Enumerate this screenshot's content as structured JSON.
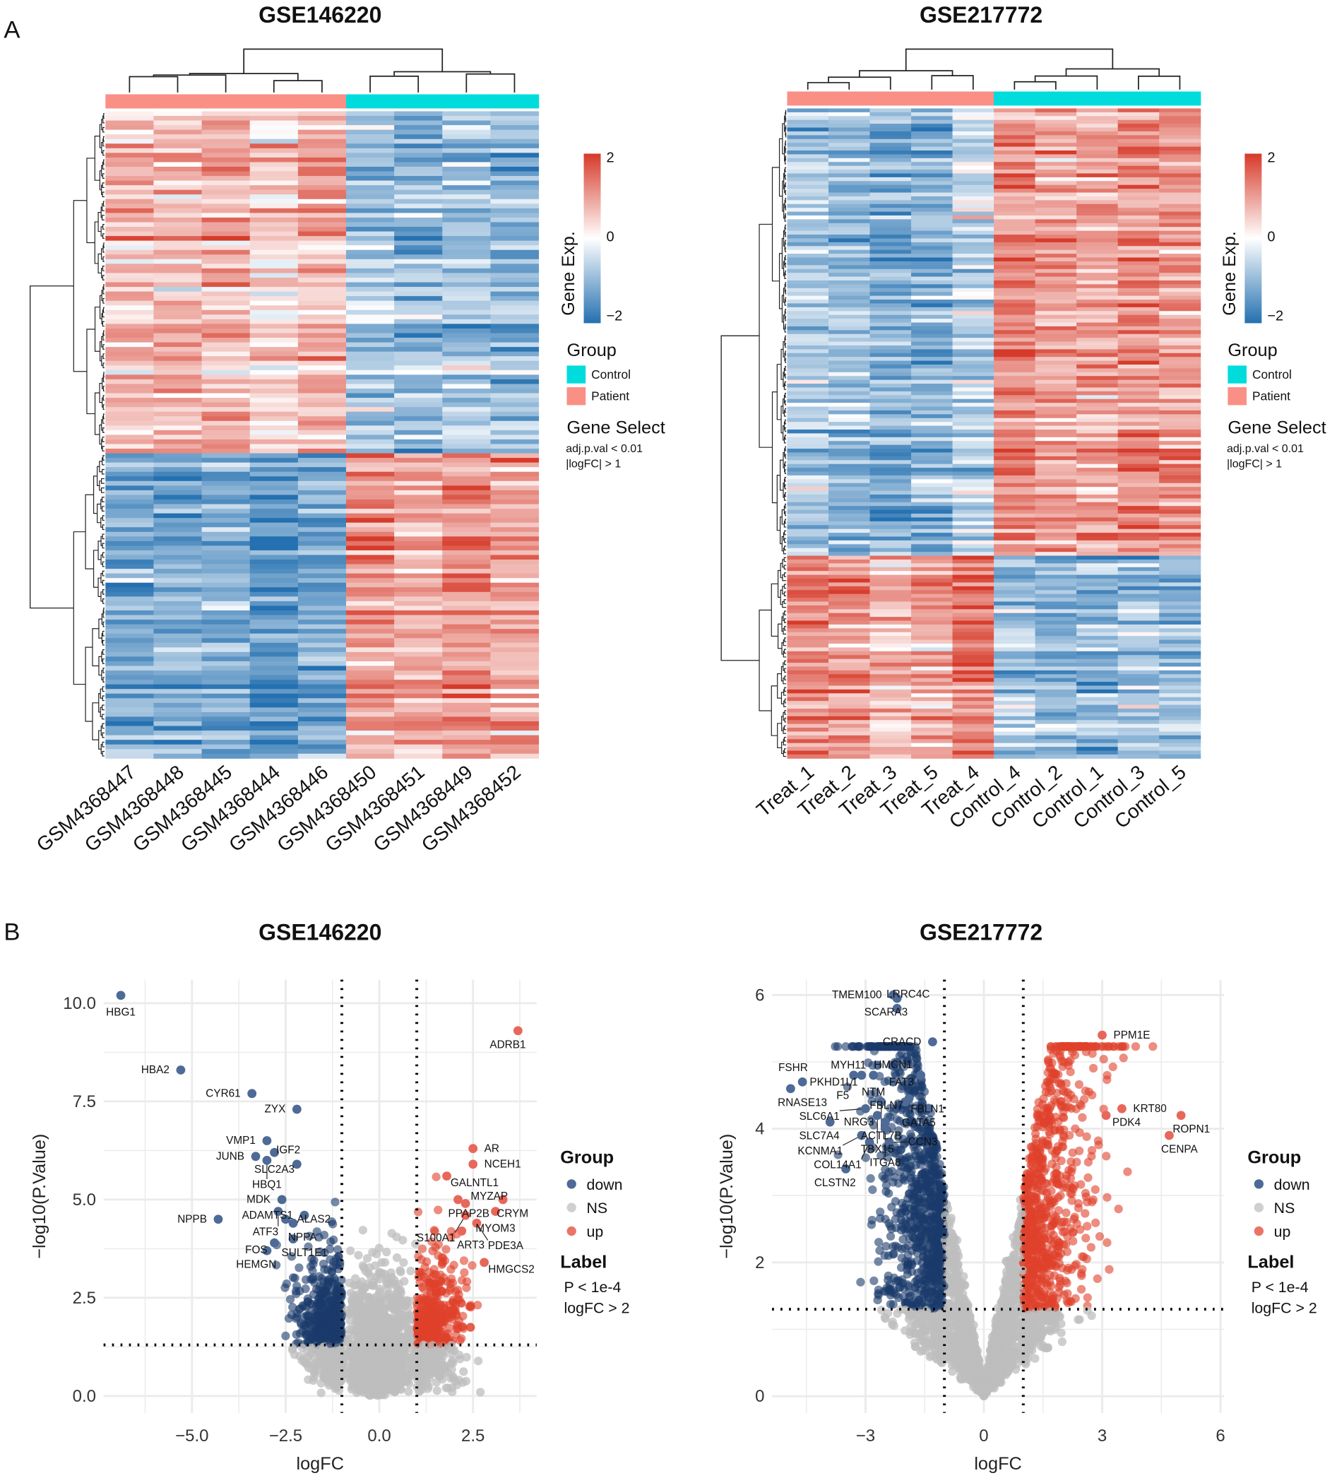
{
  "panel_labels": [
    "A",
    "B"
  ],
  "chart_data": [
    {
      "type": "heatmap",
      "title": "GSE146220",
      "columns": [
        "GSM4368447",
        "GSM4368448",
        "GSM4368445",
        "GSM4368444",
        "GSM4368446",
        "GSM4368450",
        "GSM4368451",
        "GSM4368449",
        "GSM4368452"
      ],
      "column_groups": [
        "Patient",
        "Patient",
        "Patient",
        "Patient",
        "Patient",
        "Control",
        "Control",
        "Control",
        "Control"
      ],
      "row_clusters": [
        {
          "pattern": "high in Patient, low in Control",
          "share": 0.53
        },
        {
          "pattern": "low in Patient, high in Control",
          "share": 0.47
        }
      ],
      "colorbar": {
        "label": "Gene Exp.",
        "ticks": [
          "2",
          "0",
          "−2"
        ],
        "range": [
          -2,
          2
        ],
        "low": "#2470b0",
        "mid": "#ffffff",
        "high": "#d63a2a"
      },
      "legend_group": {
        "title": "Group",
        "items": [
          {
            "label": "Control",
            "color": "#00dcdc"
          },
          {
            "label": "Patient",
            "color": "#fa8f86"
          }
        ]
      },
      "gene_select": {
        "title": "Gene Select",
        "lines": [
          "adj.p.val < 0.01",
          "|logFC| > 1"
        ]
      }
    },
    {
      "type": "heatmap",
      "title": "GSE217772",
      "columns": [
        "Treat_1",
        "Treat_2",
        "Treat_3",
        "Treat_5",
        "Treat_4",
        "Control_4",
        "Control_2",
        "Control_1",
        "Control_3",
        "Control_5"
      ],
      "column_groups": [
        "Patient",
        "Patient",
        "Patient",
        "Patient",
        "Patient",
        "Control",
        "Control",
        "Control",
        "Control",
        "Control"
      ],
      "row_clusters": [
        {
          "pattern": "low in Patient, high in Control",
          "share": 0.69
        },
        {
          "pattern": "high in Patient, low in Control",
          "share": 0.31
        }
      ],
      "colorbar": {
        "label": "Gene Exp.",
        "ticks": [
          "2",
          "0",
          "−2"
        ],
        "range": [
          -2,
          2
        ],
        "low": "#2470b0",
        "mid": "#ffffff",
        "high": "#d63a2a"
      },
      "legend_group": {
        "title": "Group",
        "items": [
          {
            "label": "Control",
            "color": "#00dcdc"
          },
          {
            "label": "Patient",
            "color": "#fa8f86"
          }
        ]
      },
      "gene_select": {
        "title": "Gene Select",
        "lines": [
          "adj.p.val < 0.01",
          "|logFC| > 1"
        ]
      }
    },
    {
      "type": "scatter",
      "title": "GSE146220",
      "xlabel": "logFC",
      "ylabel": "−log10(P.Value)",
      "xlim": [
        -7.36,
        4.2
      ],
      "ylim": [
        -0.43,
        10.6
      ],
      "xticks": [
        {
          "v": -5,
          "label": "−5.0"
        },
        {
          "v": -2.5,
          "label": "−2.5"
        },
        {
          "v": 0,
          "label": "0.0"
        },
        {
          "v": 2.5,
          "label": "2.5"
        }
      ],
      "yticks": [
        {
          "v": 0,
          "label": "0.0"
        },
        {
          "v": 2.5,
          "label": "2.5"
        },
        {
          "v": 5,
          "label": "5.0"
        },
        {
          "v": 7.5,
          "label": "7.5"
        },
        {
          "v": 10,
          "label": "10.0"
        }
      ],
      "grid": true,
      "thresholds": {
        "logFC": [
          -1,
          1
        ],
        "neg_log10_p": 1.3
      },
      "colors": {
        "down": "#1b3a6b",
        "NS": "#bebebe",
        "up": "#e0412c"
      },
      "labeled_points": [
        {
          "gene": "HBG1",
          "x": -6.9,
          "y": 10.2,
          "group": "down"
        },
        {
          "gene": "HBA2",
          "x": -5.3,
          "y": 8.3,
          "group": "down"
        },
        {
          "gene": "CYR61",
          "x": -3.4,
          "y": 7.7,
          "group": "down"
        },
        {
          "gene": "ZYX",
          "x": -2.2,
          "y": 7.3,
          "group": "down"
        },
        {
          "gene": "VMP1",
          "x": -3.0,
          "y": 6.5,
          "group": "down"
        },
        {
          "gene": "JUNB",
          "x": -3.3,
          "y": 6.1,
          "group": "down"
        },
        {
          "gene": "SLC2A3",
          "x": -2.8,
          "y": 6.2,
          "group": "down"
        },
        {
          "gene": "IGF2",
          "x": -2.2,
          "y": 5.9,
          "group": "down"
        },
        {
          "gene": "HBQ1",
          "x": -3.0,
          "y": 6.0,
          "group": "down"
        },
        {
          "gene": "ADAMTS1",
          "x": -2.0,
          "y": 4.6,
          "group": "down"
        },
        {
          "gene": "MDK",
          "x": -2.6,
          "y": 5.0,
          "group": "down"
        },
        {
          "gene": "ATF3",
          "x": -2.7,
          "y": 4.7,
          "group": "down"
        },
        {
          "gene": "ALAS2",
          "x": -2.5,
          "y": 4.5,
          "group": "down"
        },
        {
          "gene": "NPPA",
          "x": -2.3,
          "y": 4.4,
          "group": "down"
        },
        {
          "gene": "NPPB",
          "x": -4.3,
          "y": 4.5,
          "group": "down"
        },
        {
          "gene": "FOS",
          "x": -2.8,
          "y": 3.9,
          "group": "down"
        },
        {
          "gene": "HEMGN",
          "x": -3.0,
          "y": 3.7,
          "group": "down"
        },
        {
          "gene": "SULT1E1",
          "x": -2.3,
          "y": 4.0,
          "group": "down"
        },
        {
          "gene": "ADRB1",
          "x": 3.7,
          "y": 9.3,
          "group": "up"
        },
        {
          "gene": "AR",
          "x": 2.5,
          "y": 6.3,
          "group": "up"
        },
        {
          "gene": "NCEH1",
          "x": 2.5,
          "y": 5.9,
          "group": "up"
        },
        {
          "gene": "GALNTL1",
          "x": 1.8,
          "y": 5.6,
          "group": "up"
        },
        {
          "gene": "CRYM",
          "x": 3.3,
          "y": 5.0,
          "group": "up"
        },
        {
          "gene": "MYZAP",
          "x": 2.3,
          "y": 4.9,
          "group": "up"
        },
        {
          "gene": "PPAP2B",
          "x": 2.1,
          "y": 5.0,
          "group": "up"
        },
        {
          "gene": "MYOM3",
          "x": 3.1,
          "y": 4.7,
          "group": "up"
        },
        {
          "gene": "ART3",
          "x": 2.2,
          "y": 4.2,
          "group": "up"
        },
        {
          "gene": "S100A1",
          "x": 2.3,
          "y": 4.6,
          "group": "up"
        },
        {
          "gene": "PDE3A",
          "x": 2.6,
          "y": 4.4,
          "group": "up"
        },
        {
          "gene": "HMGCS2",
          "x": 2.8,
          "y": 3.4,
          "group": "up"
        }
      ],
      "legend_group": {
        "title": "Group",
        "items": [
          {
            "label": "down",
            "color": "#4e6a96"
          },
          {
            "label": "NS",
            "color": "#cfcfcf"
          },
          {
            "label": "up",
            "color": "#ea7466"
          }
        ]
      },
      "legend_label": {
        "title": "Label",
        "lines": [
          "P < 1e-4",
          "logFC > 2"
        ]
      }
    },
    {
      "type": "scatter",
      "title": "GSE217772",
      "xlabel": "logFC",
      "ylabel": "−log10(P.Value)",
      "xlim": [
        -5.37,
        6.09
      ],
      "ylim": [
        -0.25,
        6.23
      ],
      "xticks": [
        {
          "v": -3,
          "label": "−3"
        },
        {
          "v": 0,
          "label": "0"
        },
        {
          "v": 3,
          "label": "3"
        },
        {
          "v": 6,
          "label": "6"
        }
      ],
      "yticks": [
        {
          "v": 0,
          "label": "0"
        },
        {
          "v": 2,
          "label": "2"
        },
        {
          "v": 4,
          "label": "4"
        },
        {
          "v": 6,
          "label": "6"
        }
      ],
      "grid": true,
      "thresholds": {
        "logFC": [
          -1,
          1
        ],
        "neg_log10_p": 1.3
      },
      "colors": {
        "down": "#1b3a6b",
        "NS": "#bebebe",
        "up": "#e0412c"
      },
      "labeled_points": [
        {
          "gene": "TMEM100",
          "x": -2.3,
          "y": 6.0,
          "group": "down"
        },
        {
          "gene": "SCARA3",
          "x": -2.2,
          "y": 5.95,
          "group": "down"
        },
        {
          "gene": "LRRC4C",
          "x": -2.2,
          "y": 5.8,
          "group": "down"
        },
        {
          "gene": "MYH11",
          "x": -2.7,
          "y": 4.95,
          "group": "down"
        },
        {
          "gene": "PKHD1L1",
          "x": -3.1,
          "y": 4.8,
          "group": "down"
        },
        {
          "gene": "NTM",
          "x": -2.8,
          "y": 4.8,
          "group": "down"
        },
        {
          "gene": "CRACD",
          "x": -1.3,
          "y": 5.3,
          "group": "down"
        },
        {
          "gene": "FSHR",
          "x": -4.6,
          "y": 4.7,
          "group": "down"
        },
        {
          "gene": "FBLN7",
          "x": -1.9,
          "y": 4.45,
          "group": "down"
        },
        {
          "gene": "NRG3",
          "x": -2.5,
          "y": 4.1,
          "group": "down"
        },
        {
          "gene": "HMCN1",
          "x": -2.3,
          "y": 4.7,
          "group": "down"
        },
        {
          "gene": "F5",
          "x": -3.3,
          "y": 4.8,
          "group": "down"
        },
        {
          "gene": "FAT3",
          "x": -1.6,
          "y": 4.8,
          "group": "down"
        },
        {
          "gene": "GATA5",
          "x": -1.4,
          "y": 4.3,
          "group": "down"
        },
        {
          "gene": "RNASE13",
          "x": -4.9,
          "y": 4.6,
          "group": "down"
        },
        {
          "gene": "FBLN1",
          "x": -2.0,
          "y": 4.4,
          "group": "down"
        },
        {
          "gene": "ACTL7B",
          "x": -2.6,
          "y": 4.4,
          "group": "down"
        },
        {
          "gene": "SLC6A1",
          "x": -3.0,
          "y": 4.3,
          "group": "down"
        },
        {
          "gene": "TBX15",
          "x": -2.7,
          "y": 4.2,
          "group": "down"
        },
        {
          "gene": "SLC7A4",
          "x": -3.9,
          "y": 4.1,
          "group": "down"
        },
        {
          "gene": "KCNMA1",
          "x": -3.1,
          "y": 3.9,
          "group": "down"
        },
        {
          "gene": "ITGA8",
          "x": -2.5,
          "y": 4.0,
          "group": "down"
        },
        {
          "gene": "COL14A1",
          "x": -2.9,
          "y": 3.8,
          "group": "down"
        },
        {
          "gene": "CCN3",
          "x": -2.4,
          "y": 3.8,
          "group": "down"
        },
        {
          "gene": "CLSTN2",
          "x": -3.5,
          "y": 3.4,
          "group": "down"
        },
        {
          "gene": "PPM1E",
          "x": 3.0,
          "y": 5.4,
          "group": "up"
        },
        {
          "gene": "KRT80",
          "x": 3.5,
          "y": 4.3,
          "group": "up"
        },
        {
          "gene": "ROPN1",
          "x": 5.0,
          "y": 4.2,
          "group": "up"
        },
        {
          "gene": "PDK4",
          "x": 3.1,
          "y": 4.2,
          "group": "up"
        },
        {
          "gene": "CENPA",
          "x": 4.7,
          "y": 3.9,
          "group": "up"
        }
      ],
      "legend_group": {
        "title": "Group",
        "items": [
          {
            "label": "down",
            "color": "#4e6a96"
          },
          {
            "label": "NS",
            "color": "#cfcfcf"
          },
          {
            "label": "up",
            "color": "#ea7466"
          }
        ]
      },
      "legend_label": {
        "title": "Label",
        "lines": [
          "P < 1e-4",
          "logFC > 2"
        ]
      }
    }
  ]
}
